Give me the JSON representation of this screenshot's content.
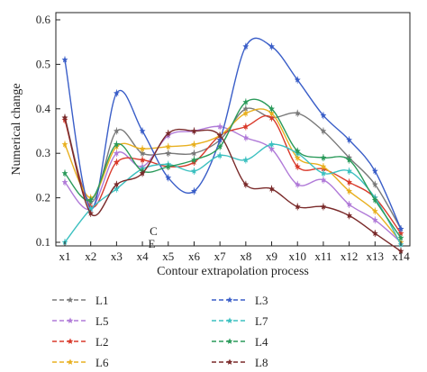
{
  "chart_data": {
    "type": "line",
    "xlabel": "Contour extrapolation process",
    "ylabel": "Numerical change",
    "ylim": [
      0.1,
      0.6
    ],
    "yticks": [
      "0.1",
      "0.2",
      "0.3",
      "0.4",
      "0.5",
      "0.6"
    ],
    "categories": [
      "x1",
      "x2",
      "x3",
      "x4",
      "x5",
      "x6",
      "x7",
      "x8",
      "x9",
      "x10",
      "x11",
      "x12",
      "x13",
      "x14"
    ],
    "annotations": [
      "C",
      "E"
    ],
    "legend_position": "bottom, two columns",
    "series": [
      {
        "name": "L1",
        "color": "#7a7a7a",
        "marker": "star",
        "values": [
          0.38,
          0.19,
          0.35,
          0.3,
          0.3,
          0.3,
          0.33,
          0.4,
          0.38,
          0.39,
          0.35,
          0.29,
          0.23,
          0.13
        ]
      },
      {
        "name": "L5",
        "color": "#b07ad8",
        "marker": "star",
        "values": [
          0.235,
          0.175,
          0.3,
          0.27,
          0.34,
          0.35,
          0.36,
          0.335,
          0.31,
          0.23,
          0.24,
          0.185,
          0.15,
          0.1
        ]
      },
      {
        "name": "L2",
        "color": "#d93a2b",
        "marker": "star",
        "values": [
          0.375,
          0.18,
          0.28,
          0.285,
          0.27,
          0.28,
          0.34,
          0.36,
          0.38,
          0.27,
          0.265,
          0.235,
          0.2,
          0.12
        ]
      },
      {
        "name": "L6",
        "color": "#e8b020",
        "marker": "star",
        "values": [
          0.32,
          0.2,
          0.315,
          0.31,
          0.315,
          0.32,
          0.34,
          0.39,
          0.39,
          0.29,
          0.27,
          0.215,
          0.17,
          0.1
        ]
      },
      {
        "name": "L3",
        "color": "#3a5ec8",
        "marker": "star",
        "values": [
          0.51,
          0.175,
          0.435,
          0.35,
          0.245,
          0.215,
          0.33,
          0.54,
          0.54,
          0.465,
          0.385,
          0.33,
          0.26,
          0.13
        ]
      },
      {
        "name": "L7",
        "color": "#3cc0c0",
        "marker": "star",
        "values": [
          0.1,
          0.175,
          0.22,
          0.265,
          0.275,
          0.26,
          0.295,
          0.285,
          0.32,
          0.3,
          0.255,
          0.26,
          0.2,
          0.095
        ]
      },
      {
        "name": "L4",
        "color": "#2a9a5a",
        "marker": "star",
        "values": [
          0.255,
          0.195,
          0.32,
          0.26,
          0.27,
          0.285,
          0.315,
          0.415,
          0.4,
          0.305,
          0.29,
          0.285,
          0.195,
          0.11
        ]
      },
      {
        "name": "L8",
        "color": "#7a2a2a",
        "marker": "star",
        "values": [
          0.38,
          0.165,
          0.23,
          0.255,
          0.345,
          0.35,
          0.34,
          0.23,
          0.22,
          0.18,
          0.18,
          0.16,
          0.12,
          0.08
        ]
      }
    ]
  }
}
